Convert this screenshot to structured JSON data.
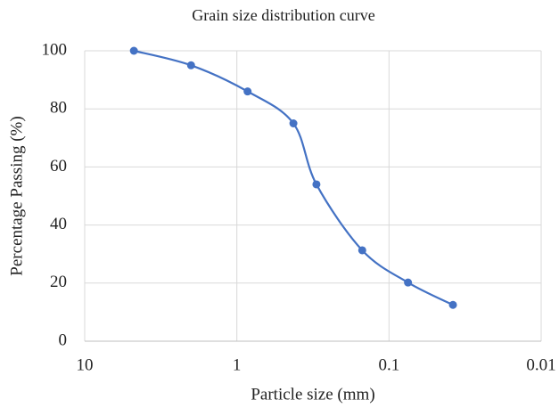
{
  "chart_data": {
    "type": "line",
    "title": "Grain size distribution curve",
    "x_label": "Particle size (mm)",
    "y_label": "Percentage Passing (%)",
    "x": [
      4.75,
      2.0,
      0.85,
      0.425,
      0.3,
      0.15,
      0.075,
      0.038
    ],
    "series": [
      {
        "name": "Percentage Passing",
        "color": "#4472c4",
        "values": [
          100,
          95,
          86,
          75,
          54,
          31.3,
          20.2,
          12.5
        ]
      }
    ],
    "xscale": "log",
    "xlim": [
      10,
      0.01
    ],
    "xticks": [
      10,
      1,
      0.1,
      0.01
    ],
    "ylim": [
      0,
      100
    ],
    "yticks": [
      0,
      20,
      40,
      60,
      80,
      100
    ],
    "grid": true,
    "smooth": true
  }
}
